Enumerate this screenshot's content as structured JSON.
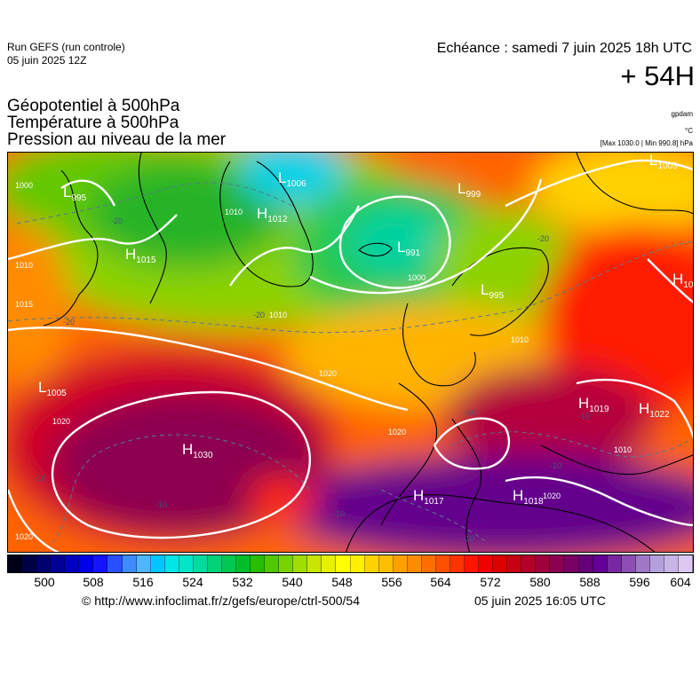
{
  "header": {
    "run_line1": "Run GEFS (run controle)",
    "run_line2": "05 juin 2025 12Z",
    "echeance": "Echéance : samedi 7 juin 2025 18h UTC",
    "lead": "+ 54H",
    "title_line1": "Géopotentiel à 500hPa",
    "title_line2": "Température à 500hPa",
    "title_line3": "Pression au niveau de la mer",
    "unit_gpdam": "gpdam",
    "unit_c": "°C",
    "unit_pressure": "[Max 1030.0 | Min 990.8] hPa"
  },
  "map": {
    "pressure_centers": [
      {
        "type": "L",
        "value": "995"
      },
      {
        "type": "L",
        "value": "1006"
      },
      {
        "type": "L",
        "value": "999"
      },
      {
        "type": "L",
        "value": "1003"
      },
      {
        "type": "H",
        "value": "1012"
      },
      {
        "type": "L",
        "value": "991"
      },
      {
        "type": "H",
        "value": "1015"
      },
      {
        "type": "L",
        "value": "995"
      },
      {
        "type": "H",
        "value": "10"
      },
      {
        "type": "L",
        "value": "1005"
      },
      {
        "type": "H",
        "value": "1030"
      },
      {
        "type": "H",
        "value": "1019"
      },
      {
        "type": "H",
        "value": "1022"
      },
      {
        "type": "H",
        "value": "1017"
      },
      {
        "type": "H",
        "value": "1018"
      }
    ],
    "isobar_labels": [
      "1000",
      "1010",
      "1010",
      "1000",
      "1015",
      "1010",
      "1010",
      "1020",
      "1020",
      "1020",
      "1020",
      "1010",
      "1020"
    ],
    "isotherm_labels": [
      "-20",
      "-20",
      "-20",
      "-20",
      "-10",
      "-10",
      "-10",
      "-10",
      "-10",
      "-10",
      "-10"
    ]
  },
  "colorbar": {
    "colors": [
      "#000018",
      "#000046",
      "#00006e",
      "#000096",
      "#0000be",
      "#0000e6",
      "#1414ff",
      "#2850ff",
      "#3c8cff",
      "#50b4ff",
      "#00c8ff",
      "#00e6e6",
      "#00e6c8",
      "#00dca0",
      "#00d278",
      "#00c850",
      "#00be28",
      "#28be00",
      "#50c800",
      "#78d200",
      "#a0dc00",
      "#c8e600",
      "#e6f000",
      "#ffff00",
      "#fff000",
      "#ffd200",
      "#ffbe00",
      "#ffa000",
      "#ff8c00",
      "#ff6e00",
      "#ff5000",
      "#ff3200",
      "#ff1400",
      "#f00000",
      "#dc0000",
      "#c80014",
      "#b40028",
      "#a0003c",
      "#8c0050",
      "#780064",
      "#640078",
      "#640096",
      "#7828a0",
      "#8c50b4",
      "#a078c8",
      "#b4a0dc",
      "#c8b4e6",
      "#dcc8f0"
    ],
    "tick_labels": [
      "500",
      "508",
      "516",
      "524",
      "532",
      "540",
      "548",
      "556",
      "564",
      "572",
      "580",
      "588",
      "596",
      "604"
    ]
  },
  "footer": {
    "url": "© http://www.infoclimat.fr/z/gefs/europe/ctrl-500/54",
    "timestamp": "05 juin 2025 16:05 UTC"
  }
}
